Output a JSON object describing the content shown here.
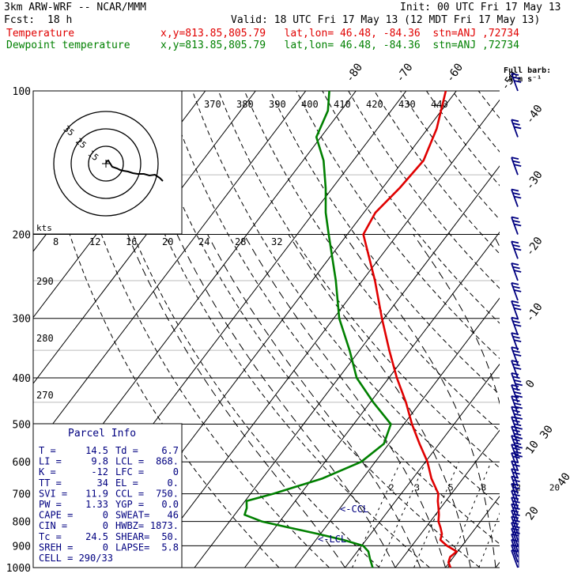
{
  "header": {
    "model": "3km ARW-WRF -- NCAR/MMM",
    "init": "Init: 00 UTC Fri 17 May 13",
    "fcst_label": "Fcst:",
    "fcst_value": "18 h",
    "valid": "Valid: 18 UTC Fri 17 May 13 (12 MDT Fri 17 May 13)",
    "temp_label": "Temperature",
    "temp_loc": "x,y=813.85,805.79   lat,lon= 46.48, -84.36  stn=ANJ ,72734",
    "dew_label": "Dewpoint temperature",
    "dew_loc": "x,y=813.85,805.79   lat,lon= 46.48, -84.36  stn=ANJ ,72734"
  },
  "wind_scale": {
    "title": "Full barb:",
    "value": "5 m s⁻¹"
  },
  "parcel_info": {
    "title": "Parcel Info",
    "rows": [
      {
        "k1": "T   =",
        "v1": "14.5",
        "k2": "Td  =",
        "v2": "6.7"
      },
      {
        "k1": "LI  =",
        "v1": "9.8",
        "k2": "LCL =",
        "v2": "868."
      },
      {
        "k1": "K   =",
        "v1": "-12",
        "k2": "LFC =",
        "v2": "0"
      },
      {
        "k1": "TT  =",
        "v1": "34",
        "k2": "EL  =",
        "v2": "0."
      },
      {
        "k1": "SVI =",
        "v1": "11.9",
        "k2": "CCL =",
        "v2": "750."
      },
      {
        "k1": "PW  =",
        "v1": "1.33",
        "k2": "YGP =",
        "v2": "0.0"
      },
      {
        "k1": "CAPE =",
        "v1": "0",
        "k2": "SWEAT=",
        "v2": "46"
      },
      {
        "k1": "CIN  =",
        "v1": "0",
        "k2": "HWBZ=",
        "v2": "1873."
      },
      {
        "k1": "Tc   =",
        "v1": "24.5",
        "k2": "SHEAR=",
        "v2": "50."
      },
      {
        "k1": "SREH =",
        "v1": "0",
        "k2": "LAPSE=",
        "v2": "5.8"
      },
      {
        "k1": "CELL = 290/33",
        "v1": "",
        "k2": "",
        "v2": ""
      }
    ]
  },
  "hodograph": {
    "units": "kts",
    "rings": [
      "15",
      "25",
      "35"
    ],
    "speed_labels": [
      "8",
      "12",
      "16",
      "20",
      "24",
      "28",
      "32"
    ],
    "dir_labels": [
      "290",
      "280",
      "270"
    ]
  },
  "annotations": {
    "ccl": "<-CCL",
    "lcl": "<-LCL"
  },
  "colors": {
    "temperature": "#e00000",
    "dewpoint": "#008000",
    "wind": "#000080",
    "text_blue": "#000080"
  },
  "chart_data": {
    "type": "line",
    "diagram": "skew-T log-p",
    "y_axis": {
      "scale": "log",
      "ticks": [
        100,
        200,
        300,
        400,
        500,
        600,
        700,
        800,
        900,
        1000
      ]
    },
    "isotherm_labels": [
      -80,
      -70,
      -60,
      -50,
      -40,
      -30,
      -20,
      -10,
      0,
      10,
      20,
      30,
      40
    ],
    "theta_labels": [
      370,
      380,
      390,
      400,
      410,
      420,
      430,
      440
    ],
    "mixing_ratio_labels": [
      "2",
      "3",
      "5",
      "8",
      "12",
      "20"
    ],
    "series": [
      {
        "name": "Temperature",
        "color": "#e00000",
        "points": [
          [
            1000,
            11.0
          ],
          [
            975,
            9.8
          ],
          [
            950,
            9.3
          ],
          [
            925,
            9.8
          ],
          [
            900,
            7.0
          ],
          [
            875,
            4.8
          ],
          [
            850,
            4.2
          ],
          [
            825,
            3.0
          ],
          [
            800,
            1.6
          ],
          [
            775,
            0.7
          ],
          [
            750,
            -0.4
          ],
          [
            725,
            -1.6
          ],
          [
            700,
            -2.6
          ],
          [
            650,
            -6.3
          ],
          [
            600,
            -9.6
          ],
          [
            550,
            -13.9
          ],
          [
            500,
            -18.4
          ],
          [
            450,
            -22.9
          ],
          [
            400,
            -28.4
          ],
          [
            350,
            -34.1
          ],
          [
            300,
            -40.4
          ],
          [
            250,
            -47.5
          ],
          [
            200,
            -56.8
          ],
          [
            180,
            -57.7
          ],
          [
            160,
            -56.6
          ],
          [
            140,
            -56.0
          ],
          [
            120,
            -58.2
          ],
          [
            100,
            -62.1
          ]
        ]
      },
      {
        "name": "Dewpoint temperature",
        "color": "#008000",
        "points": [
          [
            1000,
            -4.5
          ],
          [
            960,
            -6.3
          ],
          [
            925,
            -7.8
          ],
          [
            900,
            -9.7
          ],
          [
            875,
            -14.5
          ],
          [
            850,
            -20.5
          ],
          [
            825,
            -27.0
          ],
          [
            800,
            -33.6
          ],
          [
            775,
            -38.0
          ],
          [
            750,
            -38.6
          ],
          [
            725,
            -39.7
          ],
          [
            700,
            -35.5
          ],
          [
            650,
            -28.0
          ],
          [
            600,
            -22.8
          ],
          [
            550,
            -21.0
          ],
          [
            500,
            -22.6
          ],
          [
            450,
            -29.4
          ],
          [
            400,
            -36.4
          ],
          [
            350,
            -42.0
          ],
          [
            300,
            -48.9
          ],
          [
            250,
            -55.3
          ],
          [
            200,
            -63.7
          ],
          [
            180,
            -67.6
          ],
          [
            160,
            -71.3
          ],
          [
            140,
            -75.9
          ],
          [
            125,
            -80.9
          ],
          [
            110,
            -82.6
          ],
          [
            100,
            -85.3
          ]
        ]
      }
    ]
  }
}
